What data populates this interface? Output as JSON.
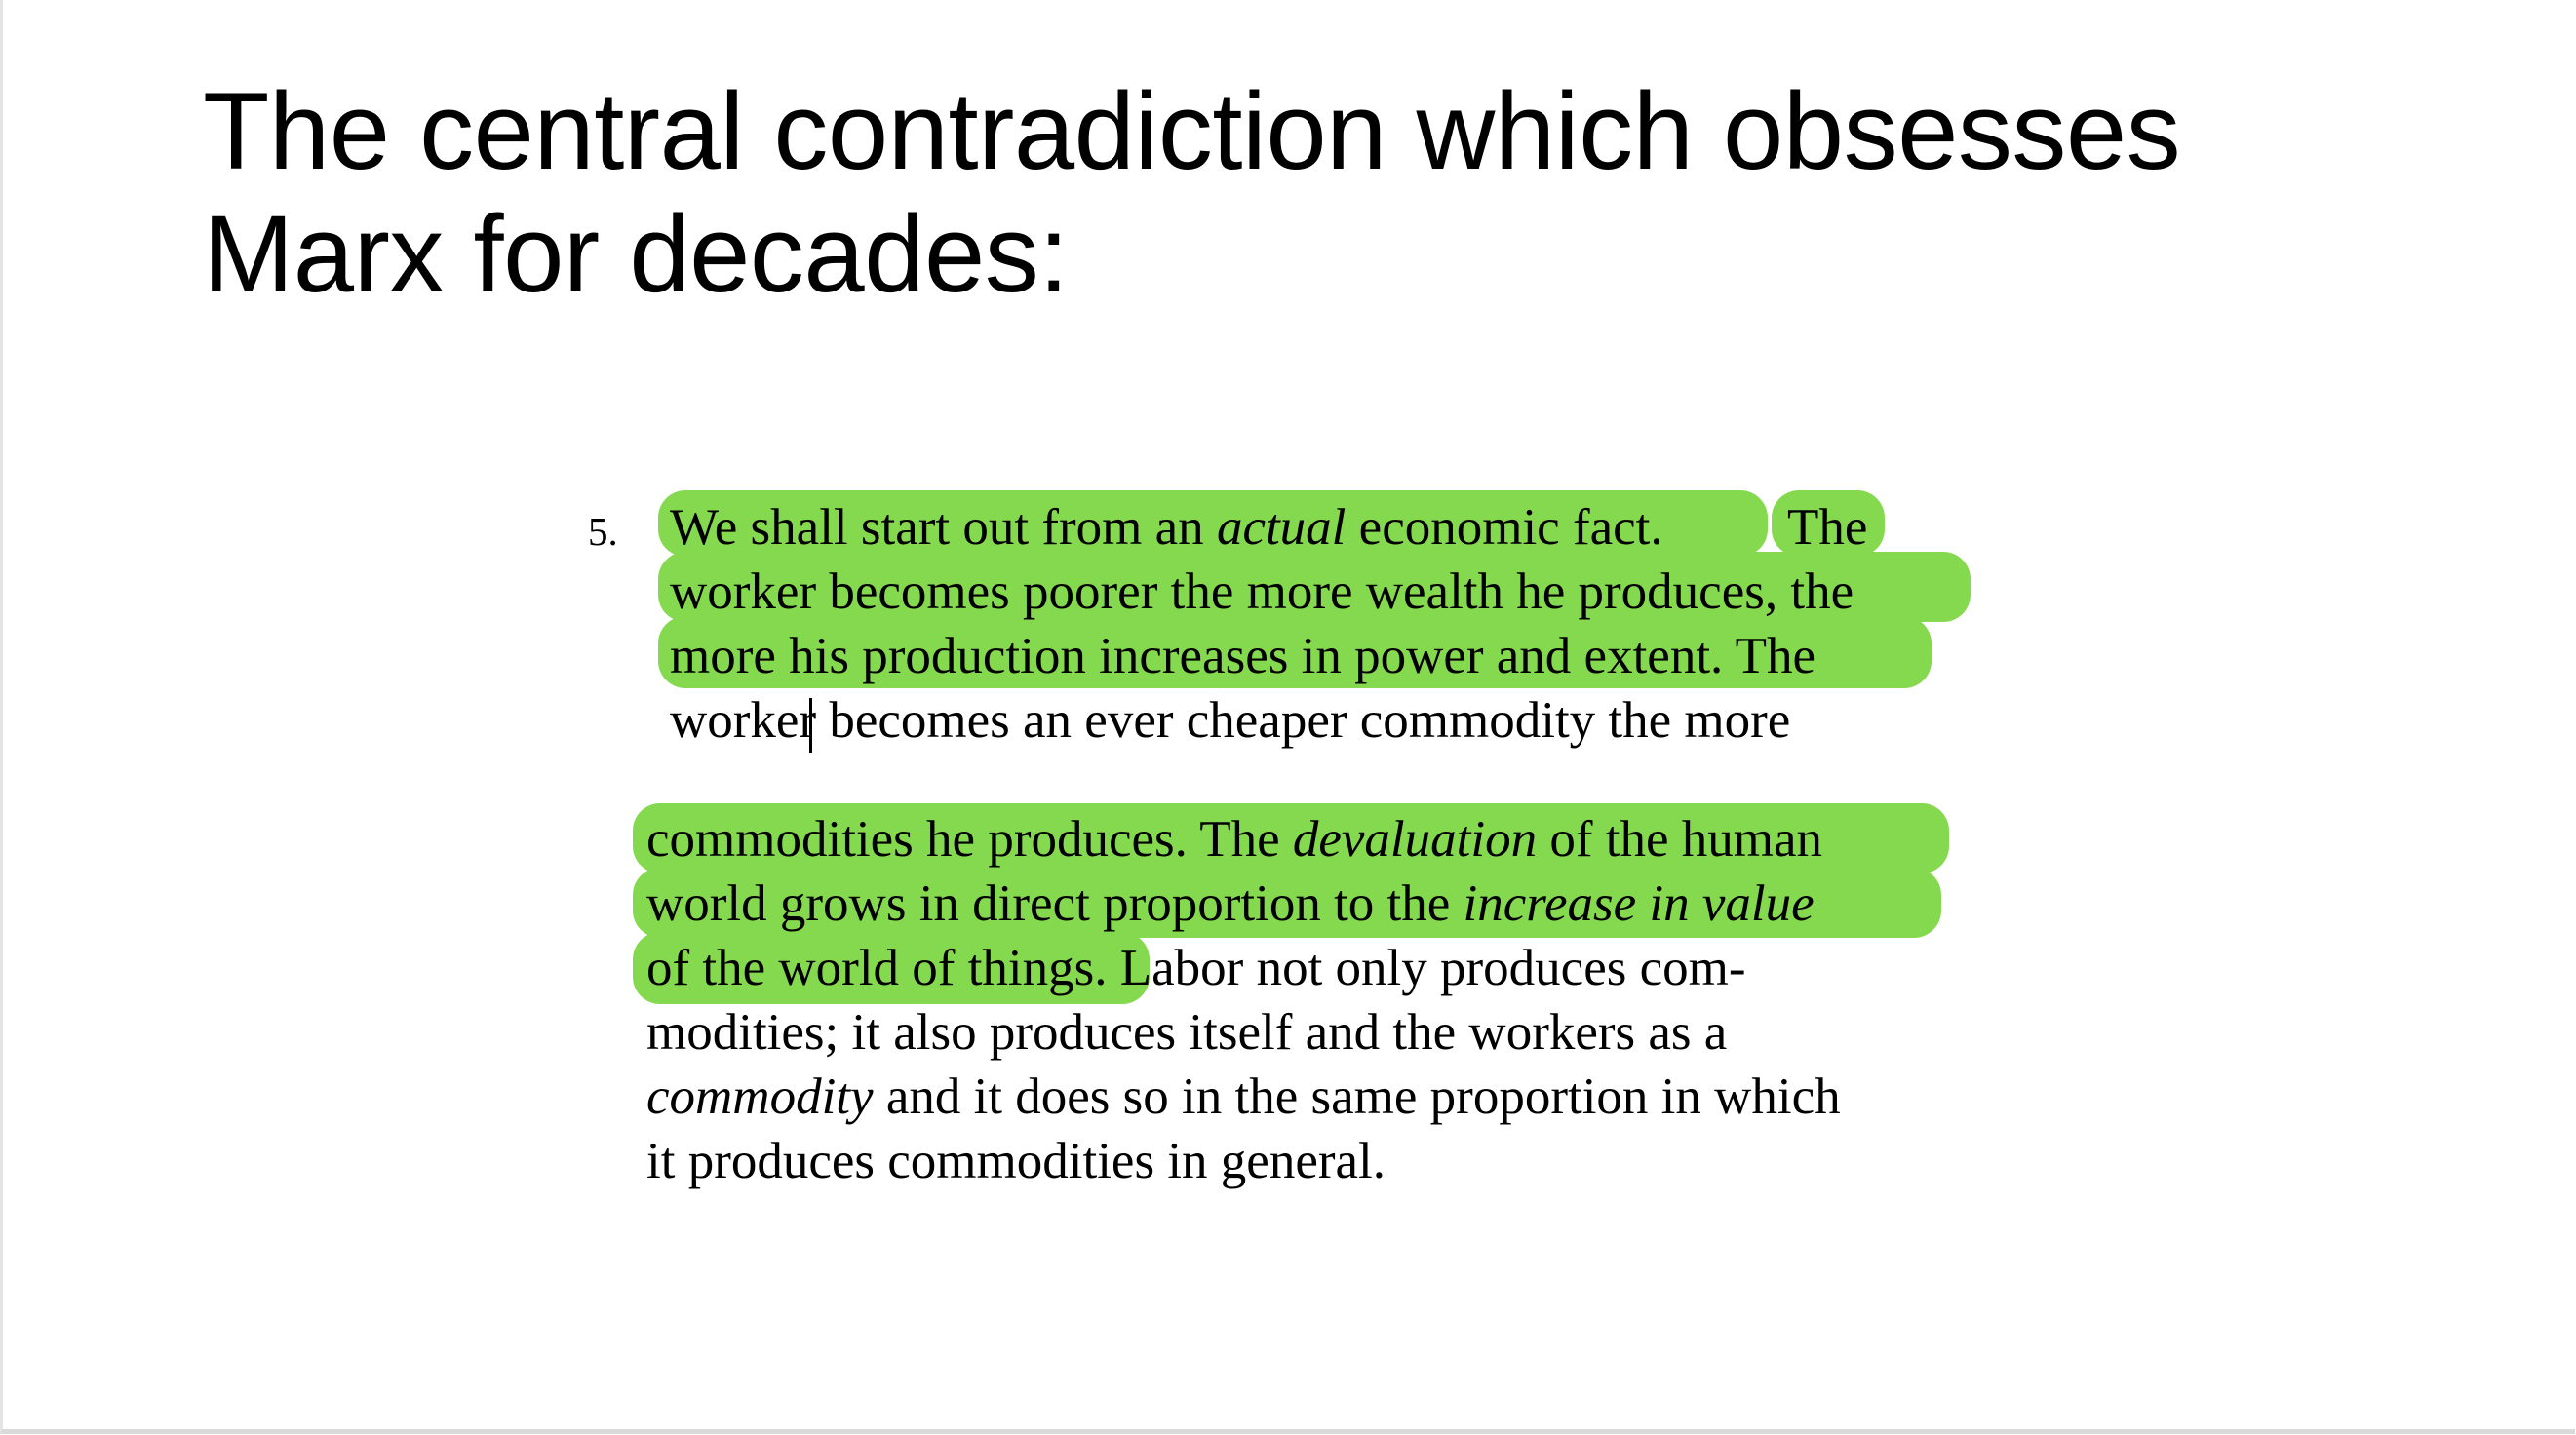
{
  "slide": {
    "title_line1": "The central contradiction which obsesses",
    "title_line2": "Marx for decades:",
    "quote": {
      "number": "5.",
      "block1": {
        "l1_a": "We shall start out from an ",
        "l1_b": "actual",
        "l1_c": " economic fact.",
        "l1_d": "The",
        "l2": "worker becomes poorer the more wealth he produces, the",
        "l3": "more his production increases in power and extent. The",
        "l4_a": "worke",
        "l4_b": "r becomes an ever cheaper commodity the more"
      },
      "block2": {
        "l1_a": "commodities he produces. The ",
        "l1_b": "devaluation",
        "l1_c": " of the human",
        "l2_a": "world grows in direct proportion to the ",
        "l2_b": "increase in value",
        "l3_a": "of the world of things.",
        "l3_b": " Labor not only produces com-",
        "l4": "modities; it also produces itself and the workers as a",
        "l5_a": "commodity",
        "l5_b": " and it does so in the same proportion in which",
        "l6": "it produces commodities in general."
      }
    },
    "colors": {
      "highlight": "#85d94f",
      "text": "#000000",
      "background": "#ffffff"
    }
  }
}
